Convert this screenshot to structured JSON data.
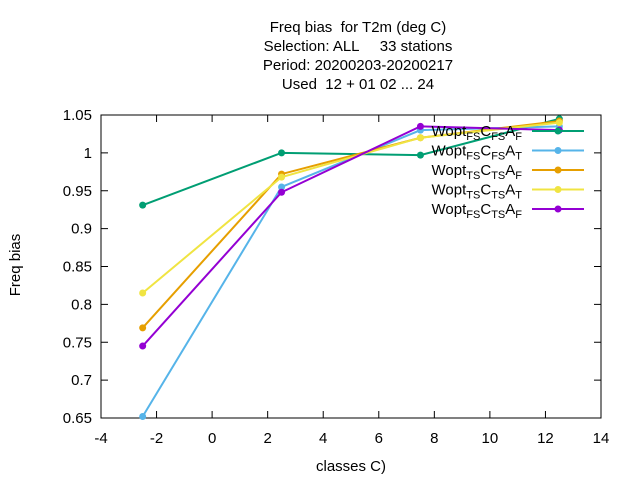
{
  "title_lines": [
    "Freq bias  for T2m (deg C)",
    "Selection: ALL     33 stations",
    "Period: 20200203-20200217",
    "Used  12 + 01 02 ... 24"
  ],
  "chart_data": {
    "type": "line",
    "xlabel": "classes C)",
    "ylabel": "Freq bias",
    "xlim": [
      -4,
      14
    ],
    "ylim": [
      0.65,
      1.05
    ],
    "x_ticks": [
      "-4",
      "-2",
      "0",
      "2",
      "4",
      "6",
      "8",
      "10",
      "12",
      "14"
    ],
    "y_ticks": [
      "0.65",
      "0.7",
      "0.75",
      "0.8",
      "0.85",
      "0.9",
      "0.95",
      "1",
      "1.05"
    ],
    "legend_position": "top-right",
    "series": [
      {
        "legend": [
          [
            "Wopt",
            ""
          ],
          [
            "",
            "FS"
          ],
          [
            "C",
            ""
          ],
          [
            "",
            "FS"
          ],
          [
            "A",
            ""
          ],
          [
            "",
            "F"
          ]
        ],
        "color": "#009e73",
        "x": [
          -2.5,
          2.5,
          7.5,
          12.5
        ],
        "y": [
          0.931,
          1.0,
          0.997,
          1.045
        ]
      },
      {
        "legend": [
          [
            "Wopt",
            ""
          ],
          [
            "",
            "FS"
          ],
          [
            "C",
            ""
          ],
          [
            "",
            "FS"
          ],
          [
            "A",
            ""
          ],
          [
            "",
            "T"
          ]
        ],
        "color": "#56b4e9",
        "x": [
          -2.5,
          2.5,
          7.5,
          12.5
        ],
        "y": [
          0.652,
          0.955,
          1.03,
          1.035
        ]
      },
      {
        "legend": [
          [
            "Wopt",
            ""
          ],
          [
            "",
            "TS"
          ],
          [
            "C",
            ""
          ],
          [
            "",
            "TS"
          ],
          [
            "A",
            ""
          ],
          [
            "",
            "F"
          ]
        ],
        "color": "#e69f00",
        "x": [
          -2.5,
          2.5,
          7.5,
          12.5
        ],
        "y": [
          0.769,
          0.972,
          1.02,
          1.042
        ]
      },
      {
        "legend": [
          [
            "Wopt",
            ""
          ],
          [
            "",
            "TS"
          ],
          [
            "C",
            ""
          ],
          [
            "",
            "TS"
          ],
          [
            "A",
            ""
          ],
          [
            "",
            "T"
          ]
        ],
        "color": "#f0e442",
        "x": [
          -2.5,
          2.5,
          7.5,
          12.5
        ],
        "y": [
          0.815,
          0.968,
          1.02,
          1.04
        ]
      },
      {
        "legend": [
          [
            "Wopt",
            ""
          ],
          [
            "",
            "FS"
          ],
          [
            "C",
            ""
          ],
          [
            "",
            "TS"
          ],
          [
            "A",
            ""
          ],
          [
            "",
            "F"
          ]
        ],
        "color": "#9400d3",
        "x": [
          -2.5,
          2.5,
          7.5,
          12.5
        ],
        "y": [
          0.745,
          0.948,
          1.035,
          1.03
        ]
      }
    ]
  }
}
